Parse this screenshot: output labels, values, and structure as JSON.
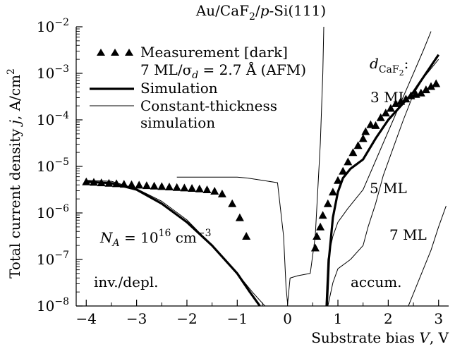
{
  "chart_data": {
    "type": "scatter",
    "title_parts": [
      "Au/CaF",
      "2",
      "/",
      "p",
      "-Si(111)"
    ],
    "xlabel_text": "Substrate bias ",
    "xlabel_var": "V",
    "xlabel_unit": ", V",
    "ylabel_text": "Total current density ",
    "ylabel_var": "j",
    "ylabel_unit": ", A/cm",
    "ylabel_sup": "2",
    "x_ticks": [
      "-4",
      "-3",
      "-2",
      "-1",
      "0",
      "1",
      "2",
      "3"
    ],
    "y_ticks": [
      {
        "base": "10",
        "exp": "-8"
      },
      {
        "base": "10",
        "exp": "-7"
      },
      {
        "base": "10",
        "exp": "-6"
      },
      {
        "base": "10",
        "exp": "-5"
      },
      {
        "base": "10",
        "exp": "-4"
      },
      {
        "base": "10",
        "exp": "-3"
      },
      {
        "base": "10",
        "exp": "-2"
      }
    ],
    "xlim": [
      -4.2,
      3.2
    ],
    "ylim_log10": [
      -8,
      -2
    ],
    "y_scale": "log",
    "grid": false,
    "legend": {
      "placement": "top-left",
      "entries": [
        {
          "marker": "triangle",
          "text": "Measurement [dark]",
          "text2_parts": [
            "7 ML/σ",
            "d",
            " = 2.7 Å (AFM)"
          ]
        },
        {
          "marker": "thick-line",
          "text": "Simulation"
        },
        {
          "marker": "thin-line",
          "text": "Constant-thickness",
          "text2": "simulation"
        }
      ]
    },
    "annotations": {
      "d_label_base": "d",
      "d_label_sub": "CaF",
      "d_label_sub2": "2",
      "d_label_colon": ":",
      "ml3": "3 ML",
      "ml5": "5 ML",
      "ml7": "7 ML",
      "na_text_parts": [
        "N",
        "A",
        " = 10",
        "16",
        " cm",
        "−3"
      ],
      "inv_depl": "inv./depl.",
      "accum": "accum."
    },
    "series": [
      {
        "kind": "measurement",
        "marker": "triangle",
        "points": [
          [
            -4.0,
            -5.33
          ],
          [
            -3.85,
            -5.34
          ],
          [
            -3.7,
            -5.35
          ],
          [
            -3.55,
            -5.36
          ],
          [
            -3.4,
            -5.37
          ],
          [
            -3.25,
            -5.38
          ],
          [
            -3.1,
            -5.39
          ],
          [
            -2.95,
            -5.4
          ],
          [
            -2.8,
            -5.41
          ],
          [
            -2.65,
            -5.42
          ],
          [
            -2.5,
            -5.43
          ],
          [
            -2.35,
            -5.44
          ],
          [
            -2.2,
            -5.45
          ],
          [
            -2.05,
            -5.46
          ],
          [
            -1.9,
            -5.47
          ],
          [
            -1.75,
            -5.48
          ],
          [
            -1.6,
            -5.5
          ],
          [
            -1.45,
            -5.53
          ],
          [
            -1.3,
            -5.59
          ],
          [
            -1.1,
            -5.8
          ],
          [
            -0.95,
            -6.1
          ],
          [
            -0.82,
            -6.5
          ],
          [
            0.55,
            -6.75
          ],
          [
            0.58,
            -6.5
          ],
          [
            0.65,
            -6.3
          ],
          [
            0.7,
            -6.05
          ],
          [
            0.8,
            -5.8
          ],
          [
            0.9,
            -5.55
          ],
          [
            1.0,
            -5.3
          ],
          [
            1.1,
            -5.1
          ],
          [
            1.2,
            -4.9
          ],
          [
            1.3,
            -4.7
          ],
          [
            1.4,
            -4.55
          ],
          [
            1.5,
            -4.4
          ],
          [
            1.55,
            -4.25
          ],
          [
            1.65,
            -4.1
          ],
          [
            1.75,
            -4.12
          ],
          [
            1.85,
            -3.95
          ],
          [
            1.95,
            -3.85
          ],
          [
            2.05,
            -3.75
          ],
          [
            2.15,
            -3.65
          ],
          [
            2.25,
            -3.6
          ],
          [
            2.35,
            -3.55
          ],
          [
            2.45,
            -3.48
          ],
          [
            2.55,
            -3.45
          ],
          [
            2.65,
            -3.42
          ],
          [
            2.75,
            -3.35
          ],
          [
            2.85,
            -3.28
          ],
          [
            2.95,
            -3.22
          ]
        ]
      },
      {
        "kind": "simulation",
        "line": "thick",
        "segments": [
          [
            [
              -4.0,
              -5.33
            ],
            [
              -3.5,
              -5.36
            ],
            [
              -3.0,
              -5.5
            ],
            [
              -2.5,
              -5.8
            ],
            [
              -2.0,
              -6.2
            ],
            [
              -1.5,
              -6.7
            ],
            [
              -1.0,
              -7.3
            ],
            [
              -0.75,
              -7.7
            ],
            [
              -0.55,
              -8.0
            ]
          ],
          [
            [
              0.78,
              -8.0
            ],
            [
              0.82,
              -7.0
            ],
            [
              0.9,
              -6.1
            ],
            [
              1.0,
              -5.55
            ],
            [
              1.1,
              -5.25
            ],
            [
              1.25,
              -5.05
            ],
            [
              1.5,
              -4.85
            ],
            [
              1.75,
              -4.4
            ],
            [
              2.0,
              -4.0
            ],
            [
              2.25,
              -3.7
            ],
            [
              2.5,
              -3.4
            ],
            [
              2.75,
              -3.0
            ],
            [
              3.0,
              -2.6
            ]
          ]
        ]
      },
      {
        "kind": "constant-thickness",
        "line": "thin",
        "segments": [
          [
            [
              -4.0,
              -5.3
            ],
            [
              -3.5,
              -5.32
            ],
            [
              -3.0,
              -5.48
            ],
            [
              -2.5,
              -5.75
            ],
            [
              -2.0,
              -6.15
            ],
            [
              -1.5,
              -6.7
            ],
            [
              -1.0,
              -7.3
            ],
            [
              -0.7,
              -7.7
            ],
            [
              -0.45,
              -8.0
            ]
          ],
          [
            [
              -2.2,
              -5.23
            ],
            [
              -1.5,
              -5.23
            ],
            [
              -1.0,
              -5.23
            ],
            [
              -0.8,
              -5.25
            ],
            [
              -0.5,
              -5.3
            ],
            [
              -0.2,
              -5.35
            ],
            [
              -0.08,
              -6.5
            ],
            [
              -0.03,
              -7.6
            ],
            [
              0.0,
              -7.95
            ],
            [
              0.05,
              -7.4
            ],
            [
              0.2,
              -7.35
            ],
            [
              0.45,
              -7.3
            ],
            [
              0.55,
              -6.5
            ],
            [
              0.6,
              -5.5
            ],
            [
              0.65,
              -4.5
            ],
            [
              0.7,
              -3.0
            ],
            [
              0.72,
              -2.0
            ]
          ],
          [
            [
              0.76,
              -8.0
            ],
            [
              0.8,
              -7.0
            ],
            [
              0.9,
              -6.5
            ],
            [
              1.0,
              -6.2
            ],
            [
              1.2,
              -5.9
            ],
            [
              1.5,
              -5.5
            ],
            [
              1.7,
              -5.0
            ],
            [
              1.9,
              -4.5
            ],
            [
              2.1,
              -4.0
            ],
            [
              2.3,
              -3.5
            ],
            [
              2.5,
              -3.0
            ],
            [
              2.7,
              -2.5
            ],
            [
              2.85,
              -2.1
            ]
          ],
          [
            [
              0.8,
              -8.0
            ],
            [
              0.9,
              -7.5
            ],
            [
              1.0,
              -7.2
            ],
            [
              1.25,
              -7.0
            ],
            [
              1.5,
              -6.7
            ],
            [
              1.6,
              -6.3
            ],
            [
              1.75,
              -5.8
            ],
            [
              1.9,
              -5.2
            ],
            [
              2.1,
              -4.6
            ],
            [
              2.3,
              -4.0
            ],
            [
              2.5,
              -3.45
            ],
            [
              2.7,
              -3.1
            ],
            [
              3.0,
              -2.7
            ]
          ],
          [
            [
              2.4,
              -8.0
            ],
            [
              2.55,
              -7.6
            ],
            [
              2.7,
              -7.2
            ],
            [
              2.85,
              -6.8
            ],
            [
              3.0,
              -6.3
            ],
            [
              3.15,
              -5.85
            ]
          ]
        ]
      }
    ]
  }
}
